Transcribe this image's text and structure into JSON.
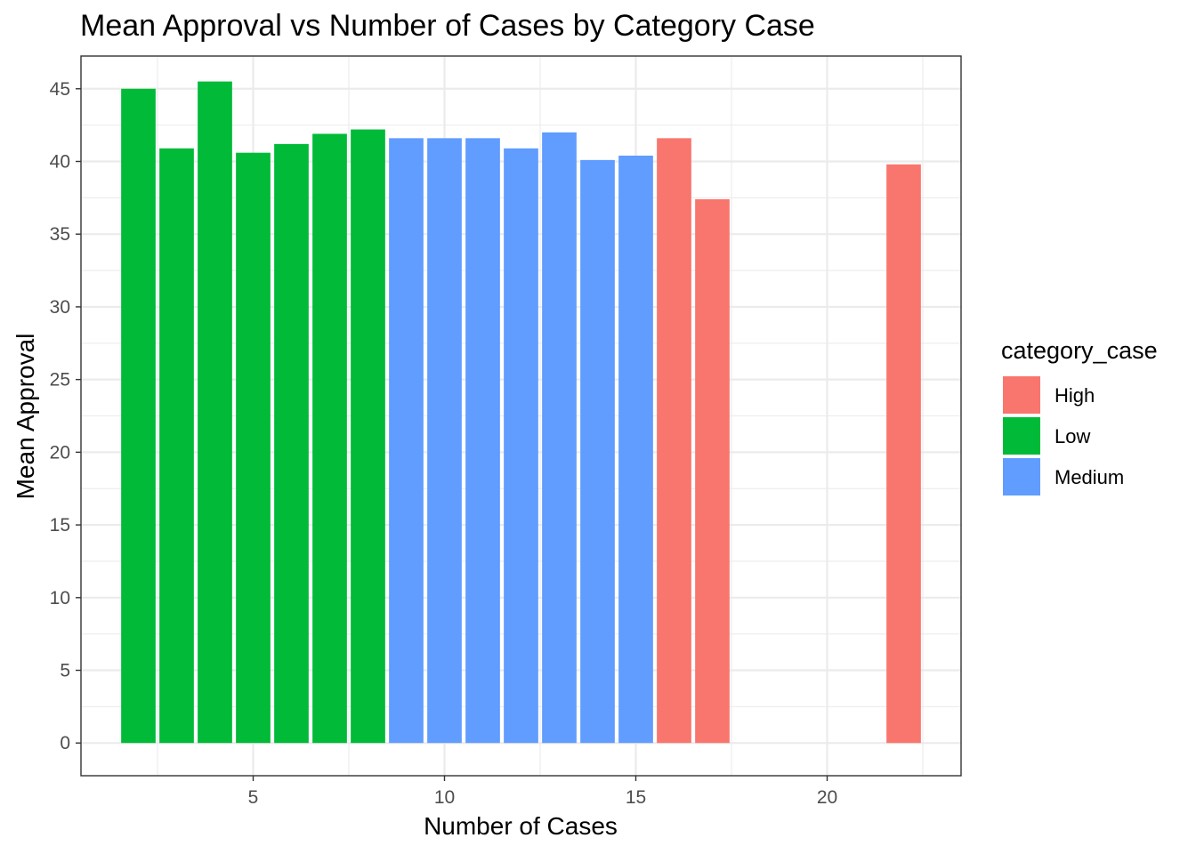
{
  "chart_data": {
    "type": "bar",
    "title": "Mean Approval vs Number of Cases by Category Case",
    "xlabel": "Number of Cases",
    "ylabel": "Mean Approval",
    "xlim": [
      0.5,
      23.5
    ],
    "ylim": [
      -2.25,
      47.25
    ],
    "x_ticks": [
      5,
      10,
      15,
      20
    ],
    "y_ticks": [
      0,
      5,
      10,
      15,
      20,
      25,
      30,
      35,
      40,
      45
    ],
    "grid": true,
    "legend": {
      "title": "category_case",
      "position": "right",
      "entries": [
        {
          "label": "High",
          "color": "#F8766D"
        },
        {
          "label": "Low",
          "color": "#00BA38"
        },
        {
          "label": "Medium",
          "color": "#619CFF"
        }
      ]
    },
    "bars": [
      {
        "x": 2,
        "y": 45.0,
        "category": "Low"
      },
      {
        "x": 3,
        "y": 40.9,
        "category": "Low"
      },
      {
        "x": 4,
        "y": 45.5,
        "category": "Low"
      },
      {
        "x": 5,
        "y": 40.6,
        "category": "Low"
      },
      {
        "x": 6,
        "y": 41.2,
        "category": "Low"
      },
      {
        "x": 7,
        "y": 41.9,
        "category": "Low"
      },
      {
        "x": 8,
        "y": 42.2,
        "category": "Low"
      },
      {
        "x": 9,
        "y": 41.6,
        "category": "Medium"
      },
      {
        "x": 10,
        "y": 41.6,
        "category": "Medium"
      },
      {
        "x": 11,
        "y": 41.6,
        "category": "Medium"
      },
      {
        "x": 12,
        "y": 40.9,
        "category": "Medium"
      },
      {
        "x": 13,
        "y": 42.0,
        "category": "Medium"
      },
      {
        "x": 14,
        "y": 40.1,
        "category": "Medium"
      },
      {
        "x": 15,
        "y": 40.4,
        "category": "Medium"
      },
      {
        "x": 16,
        "y": 41.6,
        "category": "High"
      },
      {
        "x": 17,
        "y": 37.4,
        "category": "High"
      },
      {
        "x": 22,
        "y": 39.8,
        "category": "High"
      }
    ]
  }
}
